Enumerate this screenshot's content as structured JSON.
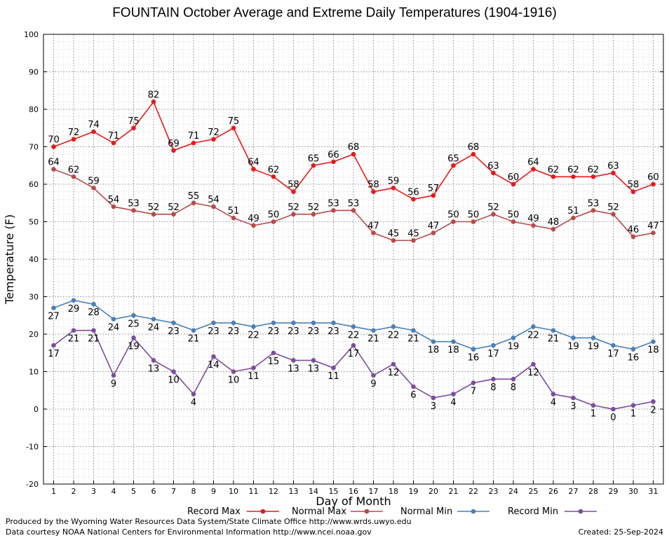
{
  "chart_data": {
    "type": "line",
    "title": "FOUNTAIN October Average and Extreme Daily Temperatures (1904-1916)",
    "xlabel": "Day of Month",
    "ylabel": "Temperature (F)",
    "ylim": [
      -20,
      100
    ],
    "yticks": [
      -20,
      -10,
      0,
      10,
      20,
      30,
      40,
      50,
      60,
      70,
      80,
      90,
      100
    ],
    "categories": [
      "1",
      "2",
      "3",
      "4",
      "5",
      "6",
      "7",
      "8",
      "9",
      "10",
      "11",
      "12",
      "13",
      "14",
      "15",
      "16",
      "17",
      "18",
      "19",
      "20",
      "21",
      "22",
      "23",
      "24",
      "25",
      "26",
      "27",
      "28",
      "29",
      "30",
      "31"
    ],
    "grid": true,
    "series": [
      {
        "name": "Record Max",
        "color": "#e8191b",
        "values": [
          70,
          72,
          74,
          71,
          75,
          82,
          69,
          71,
          72,
          75,
          64,
          62,
          58,
          65,
          66,
          68,
          58,
          59,
          56,
          57,
          65,
          68,
          63,
          60,
          64,
          62,
          62,
          62,
          63,
          58,
          60
        ]
      },
      {
        "name": "Normal Max",
        "color": "#b84a4a",
        "values": [
          64,
          62,
          59,
          54,
          53,
          52,
          52,
          55,
          54,
          51,
          49,
          50,
          52,
          52,
          53,
          53,
          47,
          45,
          45,
          47,
          50,
          50,
          52,
          50,
          49,
          48,
          51,
          53,
          52,
          46,
          47
        ]
      },
      {
        "name": "Normal Min",
        "color": "#4a80b8",
        "values": [
          27,
          29,
          28,
          24,
          25,
          24,
          23,
          21,
          23,
          23,
          22,
          23,
          23,
          23,
          23,
          22,
          21,
          22,
          21,
          18,
          18,
          16,
          17,
          19,
          22,
          21,
          19,
          19,
          17,
          16,
          18
        ]
      },
      {
        "name": "Record Min",
        "color": "#7a4e9c",
        "values": [
          17,
          21,
          21,
          9,
          19,
          13,
          10,
          4,
          14,
          10,
          11,
          15,
          13,
          13,
          11,
          17,
          9,
          12,
          6,
          3,
          4,
          7,
          8,
          8,
          12,
          4,
          3,
          1,
          0,
          1,
          2
        ]
      }
    ]
  },
  "footer": {
    "produced_by": "Produced by the Wyoming Water Resources Data System/State Climate Office http://www.wrds.uwyo.edu",
    "courtesy": "Data courtesy NOAA National Centers for Environmental Information http://www.ncei.noaa.gov",
    "created": "Created:  25-Sep-2024"
  }
}
